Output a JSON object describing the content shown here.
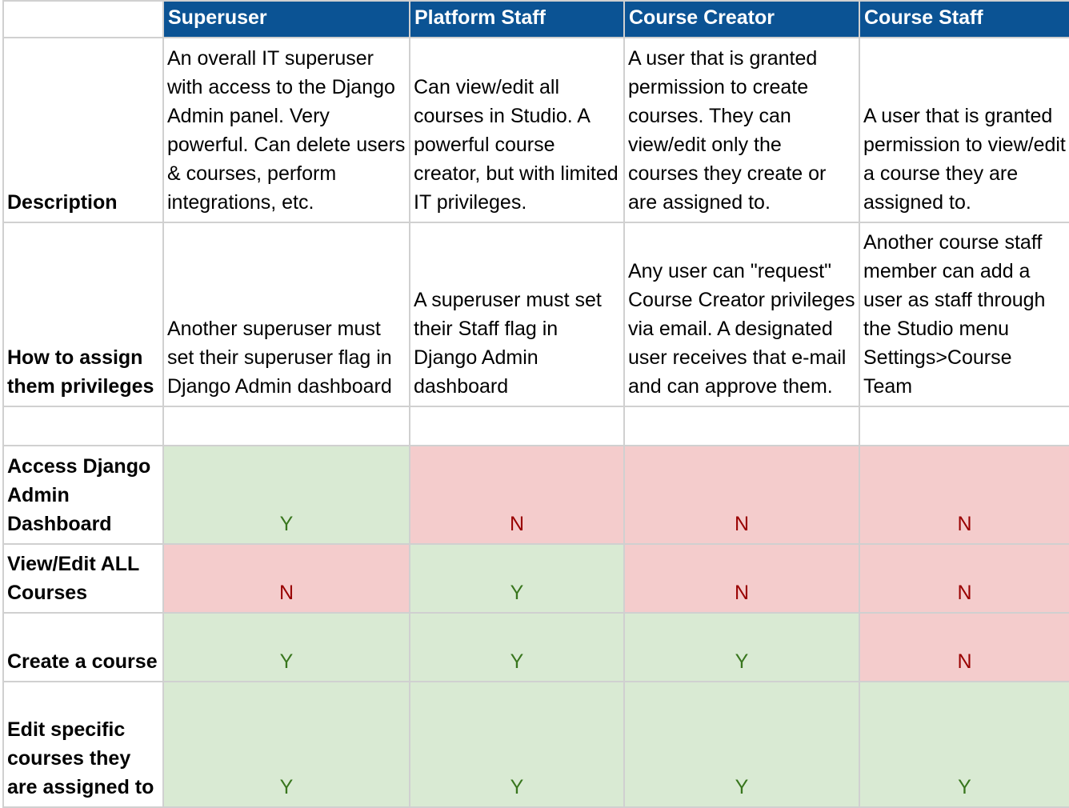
{
  "table": {
    "columns": [
      "Superuser",
      "Platform Staff",
      "Course Creator",
      "Course Staff"
    ],
    "rows": [
      {
        "label": "Description",
        "cells": [
          "An overall IT superuser with access to the Django Admin panel. Very powerful. Can delete users & courses, perform integrations, etc.",
          "Can view/edit all courses in Studio. A powerful course creator, but with limited IT privileges.",
          "A user that is granted permission to create courses. They can view/edit only the courses they create or are assigned to.",
          "A user that is granted permission to view/edit a course they are assigned to."
        ]
      },
      {
        "label": "How to assign them privileges",
        "cells": [
          "Another superuser must set their superuser flag in Django Admin dashboard",
          "A superuser must set their Staff flag in Django Admin dashboard",
          "Any user can \"request\" Course Creator privileges via email. A designated user receives that e-mail and can approve them.",
          "Another course staff member can add a user as staff through the Studio menu Settings>Course Team"
        ]
      },
      {
        "label": "Access Django Admin Dashboard",
        "cells": [
          "Y",
          "N",
          "N",
          "N"
        ]
      },
      {
        "label": "View/Edit ALL Courses",
        "cells": [
          "N",
          "Y",
          "N",
          "N"
        ]
      },
      {
        "label": "Create a course",
        "cells": [
          "Y",
          "Y",
          "Y",
          "N"
        ]
      },
      {
        "label": "Edit specific courses they are assigned to",
        "cells": [
          "Y",
          "Y",
          "Y",
          "Y"
        ]
      }
    ],
    "colors": {
      "Y": {
        "fill": "#d9ead3",
        "text": "#38761d"
      },
      "N": {
        "fill": "#f4cccc",
        "text": "#990000"
      },
      "header": "#0b5394"
    }
  }
}
